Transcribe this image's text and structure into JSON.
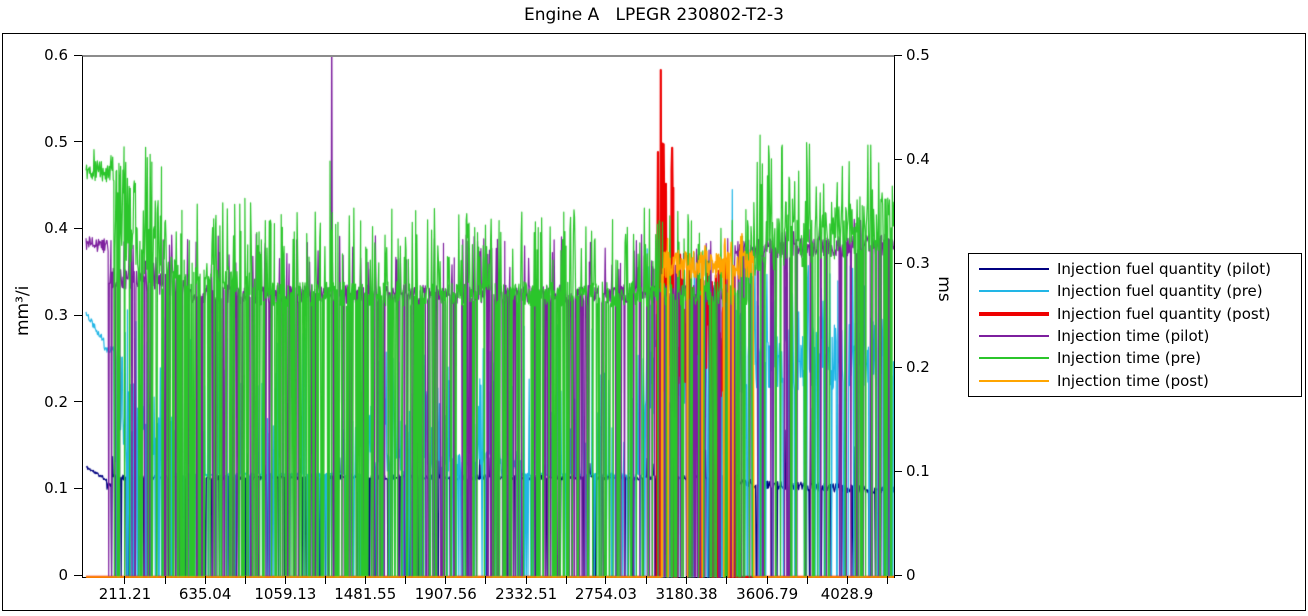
{
  "title": "Engine A   LPEGR 230802-T2-3",
  "colors": {
    "background": "#ffffff",
    "spine": "#000000",
    "top_spine": "#8c8c8c"
  },
  "chart_data": {
    "type": "line",
    "title": "Engine A   LPEGR 230802-T2-3",
    "grid": false,
    "legend_position": "right-outside",
    "x_axis": {
      "visible_range": [
        -16,
        4272
      ],
      "major_ticks": [
        211.21,
        635.04,
        1059.13,
        1481.55,
        1907.56,
        2332.51,
        2754.03,
        3180.38,
        3606.79,
        4028.9
      ],
      "major_tick_labels": [
        "211.21",
        "635.04",
        "1059.13",
        "1481.55",
        "1907.56",
        "2332.51",
        "2754.03",
        "3180.38",
        "3606.79",
        "4028.9"
      ],
      "minor_ticks": [
        423.13,
        847.09,
        1270.34,
        1694.56,
        2120.04,
        2543.27,
        2967.21,
        3393.59,
        3817.85,
        4240.9
      ]
    },
    "y_axis_left": {
      "label": "mm³/i",
      "range": [
        0,
        0.6
      ],
      "tick_values": [
        0,
        0.1,
        0.2,
        0.3,
        0.4,
        0.5,
        0.6
      ],
      "tick_labels": [
        "0",
        "0.1",
        "0.2",
        "0.3",
        "0.4",
        "0.5",
        "0.6"
      ]
    },
    "y_axis_right": {
      "label": "ms",
      "range": [
        0,
        0.5
      ],
      "tick_values": [
        0,
        0.1,
        0.2,
        0.3,
        0.4,
        0.5
      ],
      "tick_labels": [
        "0",
        "0.1",
        "0.2",
        "0.3",
        "0.4",
        "0.5"
      ]
    },
    "segment_format": [
      "x_start",
      "x_end",
      "value_start",
      "value_end",
      "noise_amp",
      "dropout_to_zero_prob",
      "spike_prob",
      "spike_low",
      "spike_high"
    ],
    "series": [
      {
        "name": "Injection fuel quantity (pilot)",
        "color": "#000080",
        "axis": "left",
        "line_width": 1.2,
        "seed": 11,
        "step": 3,
        "segments": [
          [
            0,
            110,
            0.127,
            0.112,
            0.002,
            0,
            0,
            0,
            0
          ],
          [
            110,
            135,
            0.104,
            0.11,
            0.004,
            0,
            0,
            0,
            0
          ],
          [
            135,
            3450,
            0.115,
            0.115,
            0.003,
            0.1,
            0.03,
            0.125,
            0.15
          ],
          [
            3450,
            4273,
            0.108,
            0.1,
            0.005,
            0.1,
            0.03,
            0.14,
            0.22
          ]
        ],
        "events": []
      },
      {
        "name": "Injection fuel quantity (pre)",
        "color": "#22B6E6",
        "axis": "left",
        "line_width": 1.2,
        "seed": 22,
        "step": 3,
        "segments": [
          [
            0,
            95,
            0.305,
            0.272,
            0.004,
            0,
            0,
            0,
            0
          ],
          [
            95,
            150,
            0.266,
            0.26,
            0.005,
            0,
            0,
            0,
            0
          ],
          [
            150,
            470,
            0.17,
            0.15,
            0.04,
            0.28,
            0.25,
            0.2,
            0.31
          ],
          [
            470,
            1500,
            0.118,
            0.118,
            0.002,
            0.2,
            0.16,
            0.15,
            0.3
          ],
          [
            1500,
            2300,
            0.135,
            0.13,
            0.015,
            0.22,
            0.28,
            0.16,
            0.27
          ],
          [
            2300,
            2950,
            0.118,
            0.118,
            0.002,
            0.2,
            0.18,
            0.15,
            0.3
          ],
          [
            2950,
            3450,
            0.23,
            0.26,
            0.05,
            0.22,
            0.15,
            0.3,
            0.38
          ],
          [
            3450,
            4273,
            0.25,
            0.26,
            0.04,
            0.15,
            0.12,
            0.3,
            0.36
          ]
        ],
        "events": [
          [
            3418,
            0.447
          ]
        ]
      },
      {
        "name": "Injection fuel quantity (post)",
        "color": "#EE0000",
        "axis": "left",
        "line_width": 2.2,
        "seed": 33,
        "step": 3,
        "segments": [
          [
            0,
            3020,
            0,
            0,
            0,
            0,
            0,
            0,
            0
          ],
          [
            3020,
            3110,
            0.32,
            0.3,
            0.1,
            0.05,
            0.15,
            0.4,
            0.5
          ],
          [
            3110,
            3430,
            0.28,
            0.27,
            0.07,
            0.12,
            0.08,
            0.33,
            0.38
          ],
          [
            3430,
            4273,
            0,
            0,
            0,
            0,
            0,
            0,
            0
          ]
        ],
        "events": [
          [
            3038,
            0.585
          ],
          [
            3048,
            0.5
          ],
          [
            3096,
            0.47
          ]
        ]
      },
      {
        "name": "Injection time (pilot)",
        "color": "#7D1F9E",
        "axis": "right",
        "line_width": 1.2,
        "seed": 44,
        "step": 3,
        "segments": [
          [
            0,
            120,
            0.321,
            0.318,
            0.007,
            0,
            0,
            0,
            0
          ],
          [
            120,
            520,
            0.29,
            0.28,
            0.012,
            0.2,
            0.08,
            0.3,
            0.33
          ],
          [
            520,
            3430,
            0.272,
            0.272,
            0.009,
            0.22,
            0.08,
            0.295,
            0.33
          ],
          [
            3430,
            4273,
            0.315,
            0.32,
            0.01,
            0.15,
            0.04,
            0.33,
            0.345
          ]
        ],
        "events": [
          [
            1300,
            0.56
          ]
        ]
      },
      {
        "name": "Injection time (pre)",
        "color": "#2BC52B",
        "axis": "right",
        "line_width": 1.2,
        "seed": 55,
        "step": 3,
        "segments": [
          [
            0,
            140,
            0.392,
            0.388,
            0.01,
            0,
            0.04,
            0.4,
            0.415
          ],
          [
            140,
            420,
            0.36,
            0.31,
            0.045,
            0.18,
            0.1,
            0.39,
            0.415
          ],
          [
            420,
            900,
            0.295,
            0.28,
            0.015,
            0.25,
            0.2,
            0.31,
            0.37
          ],
          [
            900,
            3530,
            0.272,
            0.272,
            0.012,
            0.26,
            0.2,
            0.3,
            0.355
          ],
          [
            3530,
            4273,
            0.315,
            0.345,
            0.028,
            0.12,
            0.14,
            0.36,
            0.42
          ]
        ],
        "events": [
          [
            3565,
            0.425
          ],
          [
            1290,
            0.4
          ]
        ]
      },
      {
        "name": "Injection time (post)",
        "color": "#FFA500",
        "axis": "right",
        "line_width": 1.5,
        "seed": 66,
        "step": 3,
        "segments": [
          [
            0,
            3045,
            0,
            0,
            0,
            0,
            0,
            0,
            0
          ],
          [
            3045,
            3530,
            0.3,
            0.3,
            0.014,
            0.06,
            0.07,
            0.315,
            0.335
          ],
          [
            3530,
            4273,
            0,
            0,
            0,
            0,
            0,
            0,
            0
          ]
        ],
        "events": []
      }
    ]
  }
}
